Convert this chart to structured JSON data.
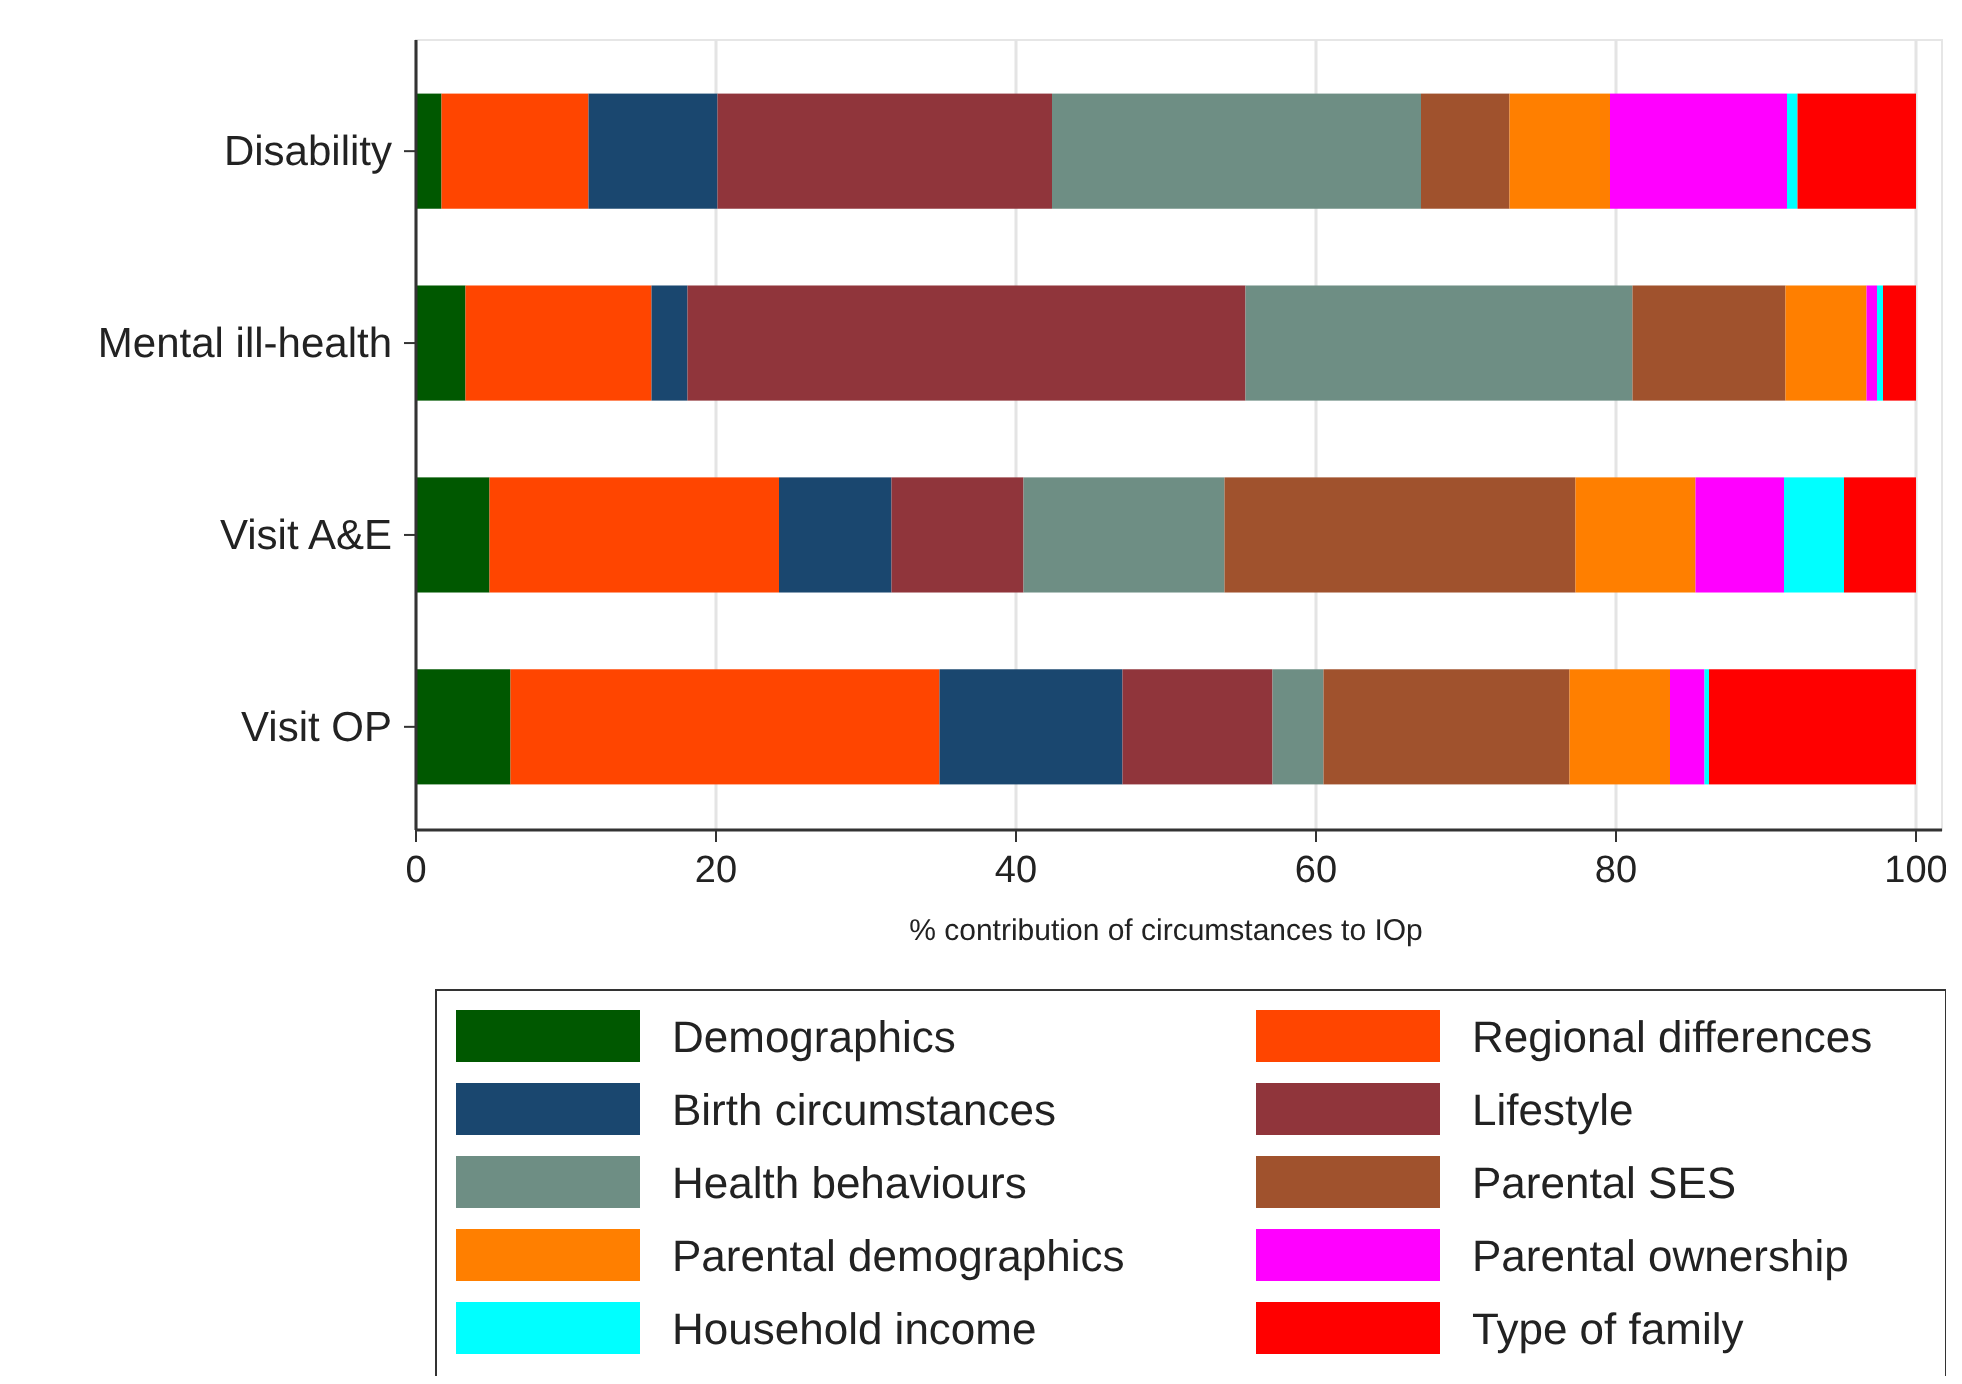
{
  "chart_data": {
    "type": "bar",
    "orientation": "horizontal",
    "stacked": true,
    "xlabel": "% contribution of circumstances to IOp",
    "categories": [
      "Disability",
      "Mental ill-health",
      "Visit A&E",
      "Visit OP"
    ],
    "xlim": [
      0,
      100
    ],
    "xticks": [
      0,
      20,
      40,
      60,
      80,
      100
    ],
    "grid": "x",
    "legend": "bottom",
    "series": [
      {
        "name": "Demographics",
        "color": "#005800",
        "values": [
          1.7,
          3.3,
          4.9,
          6.3
        ]
      },
      {
        "name": "Regional differences",
        "color": "#ff4500",
        "values": [
          9.8,
          12.4,
          19.3,
          28.6
        ]
      },
      {
        "name": "Birth circumstances",
        "color": "#1a476f",
        "values": [
          8.6,
          2.4,
          7.5,
          12.2
        ]
      },
      {
        "name": "Lifestyle",
        "color": "#90353b",
        "values": [
          22.3,
          37.2,
          8.8,
          10.0
        ]
      },
      {
        "name": "Health behaviours",
        "color": "#6e8e84",
        "values": [
          24.6,
          25.8,
          13.4,
          3.4
        ]
      },
      {
        "name": "Parental SES",
        "color": "#a0522d",
        "values": [
          5.9,
          10.2,
          23.4,
          16.4
        ]
      },
      {
        "name": "Parental demographics",
        "color": "#ff7f00",
        "values": [
          6.7,
          5.4,
          8.0,
          6.7
        ]
      },
      {
        "name": "Parental ownership",
        "color": "#ff00ff",
        "values": [
          11.8,
          0.7,
          5.9,
          2.3
        ]
      },
      {
        "name": "Household income",
        "color": "#00ffff",
        "values": [
          0.7,
          0.4,
          4.0,
          0.3
        ]
      },
      {
        "name": "Type of family",
        "color": "#ff0000",
        "values": [
          7.9,
          2.2,
          4.8,
          13.8
        ]
      }
    ]
  }
}
